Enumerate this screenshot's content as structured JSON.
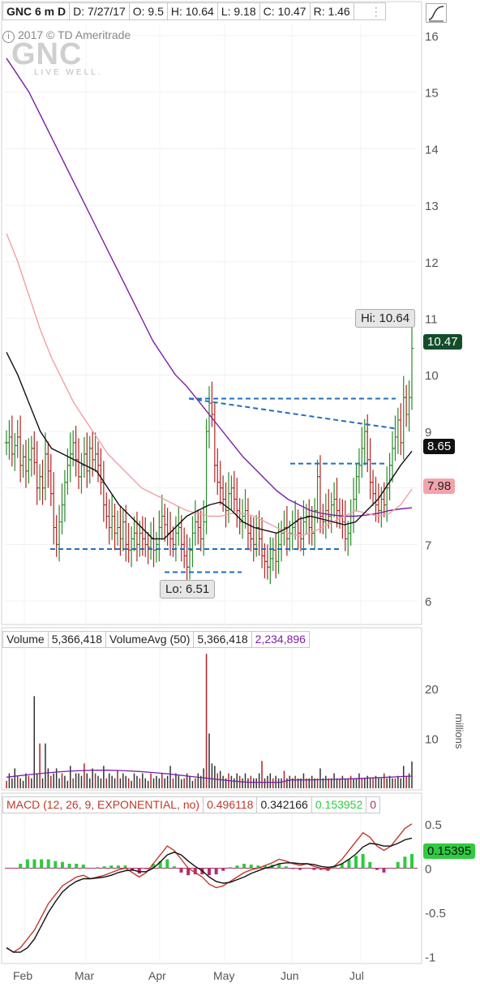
{
  "header": {
    "symbol": "GNC 6 m D",
    "date": "D: 7/27/17",
    "open": "O: 9.5",
    "high": "H: 10.64",
    "low": "L: 9.18",
    "close": "C: 10.47",
    "range": "R: 1.46"
  },
  "watermark": {
    "text": "2017 © TD Ameritrade",
    "logo": "GNC",
    "tagline": "LIVE WELL."
  },
  "price_labels": {
    "last": "10.47",
    "ma_short": "8.65",
    "ma_mid": "7.98",
    "hi": "Hi: 10.64",
    "lo": "Lo: 6.51"
  },
  "volume_header": {
    "name": "Volume",
    "value": "5,366,418",
    "avg_name": "VolumeAvg (50)",
    "avg_value": "5,366,418",
    "avg_other": "2,234,896"
  },
  "macd_header": {
    "name": "MACD (12, 26, 9, EXPONENTIAL, no)",
    "value": "0.496118",
    "avg": "0.342166",
    "diff": "0.153952",
    "zero": "0"
  },
  "macd_label": "0.15395",
  "volume_unit": "millions",
  "colors": {
    "up": "#2a8a2a",
    "down": "#b22222",
    "bar": "#333333",
    "ma_long": "#7b1fa2",
    "ma_mid": "#f0a0a8",
    "ma_short": "#111111",
    "pattern": "#1f6fbf",
    "macd_hist": "#2ecc40",
    "macd_neg": "#b0306a",
    "macd_line": "#c0392b",
    "signal_line": "#111111",
    "last_label_bg": "#134d2a",
    "ma_mid_label_bg": "#f5a3ab"
  },
  "chart_data": [
    {
      "type": "ohlc",
      "title": "GNC 6 m D",
      "x": [
        "Feb",
        "Mar",
        "Apr",
        "May",
        "Jun",
        "Jul"
      ],
      "ylim": [
        5.7,
        16.2
      ],
      "yticks": [
        6,
        7,
        8,
        9,
        10,
        11,
        12,
        13,
        14,
        15,
        16
      ],
      "hi": 10.64,
      "lo": 6.51,
      "close_series": [
        8.8,
        8.9,
        8.6,
        8.75,
        8.9,
        8.4,
        8.55,
        8.3,
        8.5,
        8.7,
        8.45,
        8.0,
        8.2,
        8.0,
        8.6,
        8.3,
        7.9,
        7.3,
        7.0,
        7.4,
        7.7,
        8.1,
        8.4,
        8.6,
        8.8,
        8.5,
        8.2,
        8.4,
        8.6,
        8.3,
        8.7,
        8.5,
        8.6,
        8.4,
        8.1,
        7.7,
        7.5,
        7.3,
        7.5,
        7.2,
        7.3,
        7.1,
        7.4,
        7.0,
        6.9,
        7.1,
        7.2,
        7.0,
        7.2,
        7.1,
        7.0,
        6.95,
        7.1,
        6.9,
        7.0,
        7.3,
        7.5,
        7.35,
        7.2,
        7.1,
        7.0,
        7.2,
        7.3,
        7.0,
        6.8,
        6.6,
        6.9,
        7.2,
        7.4,
        7.3,
        7.1,
        7.4,
        9.0,
        9.5,
        9.3,
        8.4,
        8.1,
        8.0,
        7.8,
        7.6,
        7.9,
        8.0,
        7.8,
        7.6,
        7.4,
        7.5,
        7.6,
        7.2,
        7.1,
        7.0,
        7.3,
        7.1,
        6.8,
        6.7,
        6.6,
        6.75,
        6.9,
        6.7,
        7.0,
        7.2,
        7.3,
        7.1,
        7.2,
        7.3,
        7.4,
        7.2,
        7.1,
        7.4,
        7.5,
        7.3,
        7.2,
        7.6,
        8.2,
        7.5,
        7.4,
        7.6,
        7.5,
        7.7,
        7.8,
        7.6,
        7.5,
        7.4,
        7.1,
        7.2,
        7.5,
        7.8,
        8.2,
        8.4,
        8.7,
        9.0,
        8.5,
        8.1,
        7.9,
        7.7,
        7.6,
        7.8,
        7.7,
        8.0,
        8.4,
        8.7,
        8.9,
        9.2,
        8.8,
        9.6,
        9.3,
        9.6,
        10.47
      ],
      "ma_long": [
        15.6,
        15.3,
        15.0,
        14.6,
        14.2,
        13.8,
        13.4,
        13.0,
        12.6,
        12.2,
        11.8,
        11.4,
        11.0,
        10.6,
        10.3,
        10.0,
        9.8,
        9.55,
        9.3,
        9.05,
        8.8,
        8.55,
        8.35,
        8.15,
        7.95,
        7.8,
        7.7,
        7.6,
        7.55,
        7.52,
        7.5,
        7.5,
        7.52,
        7.55,
        7.6,
        7.63,
        7.65
      ],
      "ma_mid": [
        12.5,
        12.0,
        11.4,
        10.8,
        10.3,
        9.9,
        9.5,
        9.2,
        8.9,
        8.6,
        8.4,
        8.2,
        8.0,
        7.9,
        7.8,
        7.7,
        7.6,
        7.55,
        7.5,
        7.5,
        7.55,
        7.55,
        7.5,
        7.4,
        7.3,
        7.2,
        7.15,
        7.2,
        7.3,
        7.4,
        7.5,
        7.6,
        7.55,
        7.5,
        7.55,
        7.7,
        7.98
      ],
      "ma_short": [
        10.4,
        10.0,
        9.5,
        9.0,
        8.7,
        8.6,
        8.5,
        8.4,
        8.3,
        8.0,
        7.7,
        7.5,
        7.3,
        7.1,
        7.1,
        7.3,
        7.5,
        7.6,
        7.7,
        7.75,
        7.6,
        7.4,
        7.3,
        7.25,
        7.2,
        7.3,
        7.45,
        7.5,
        7.45,
        7.4,
        7.35,
        7.4,
        7.6,
        7.8,
        8.1,
        8.4,
        8.65
      ]
    },
    {
      "type": "bar",
      "title": "Volume",
      "ylabel": "millions",
      "ylim": [
        0,
        28
      ],
      "yticks": [
        10,
        20
      ],
      "volume_avg": 2.234896,
      "values": [
        1.5,
        3,
        2,
        4,
        2.5,
        2,
        1.5,
        3,
        2.5,
        2,
        18.5,
        3,
        9,
        2,
        9,
        4,
        2.5,
        3,
        4,
        2,
        3,
        2.5,
        1.5,
        4.5,
        2,
        3,
        3,
        2.5,
        5,
        3,
        2,
        4,
        3,
        2.5,
        2,
        4.5,
        2,
        3,
        2.5,
        2,
        3.5,
        2,
        3,
        2.5,
        2,
        1.5,
        3,
        2.5,
        2,
        3,
        2,
        1.5,
        3,
        2,
        2.5,
        2,
        3,
        2,
        2.5,
        4.5,
        2,
        3,
        2.5,
        1.8,
        2,
        3,
        2.5,
        1.5,
        2,
        3,
        2.5,
        4,
        27,
        11,
        5,
        4.5,
        3,
        3.5,
        2.5,
        2,
        3,
        2.5,
        2,
        3,
        2.5,
        2,
        3,
        2,
        2.5,
        2,
        2,
        3,
        5.5,
        2,
        2.5,
        3,
        2,
        2.5,
        2,
        2,
        3.5,
        2,
        2.5,
        2,
        2.5,
        2,
        2,
        3,
        2,
        2,
        2.5,
        2,
        2,
        4,
        2,
        2.5,
        2,
        2,
        3,
        2,
        2,
        2.5,
        1.8,
        2,
        2.5,
        2,
        2,
        3,
        2,
        2,
        2.5,
        2,
        2,
        2.5,
        2,
        2,
        3,
        2,
        2.5,
        2,
        2,
        2.5,
        2,
        4.5,
        2.5,
        3,
        5.37
      ]
    },
    {
      "type": "line",
      "title": "MACD (12, 26, 9, EXPONENTIAL, no)",
      "ylim": [
        -1.05,
        0.6
      ],
      "yticks": [
        0.5,
        0,
        -0.5,
        -1
      ],
      "x": [
        "Feb",
        "Mar",
        "Apr",
        "May",
        "Jun",
        "Jul"
      ],
      "macd": [
        -0.9,
        -0.95,
        -0.9,
        -0.8,
        -0.7,
        -0.55,
        -0.4,
        -0.3,
        -0.2,
        -0.15,
        -0.1,
        -0.08,
        -0.12,
        -0.1,
        -0.08,
        -0.05,
        -0.02,
        0.0,
        -0.05,
        -0.1,
        -0.05,
        0.05,
        0.15,
        0.25,
        0.2,
        0.1,
        0.0,
        -0.05,
        -0.1,
        -0.18,
        -0.22,
        -0.2,
        -0.15,
        -0.1,
        -0.05,
        -0.02,
        0.0,
        0.03,
        0.06,
        0.1,
        0.08,
        0.05,
        0.03,
        0.05,
        0.02,
        0.0,
        -0.02,
        0.03,
        0.1,
        0.2,
        0.3,
        0.4,
        0.35,
        0.25,
        0.2,
        0.25,
        0.35,
        0.45,
        0.5
      ],
      "signal": [
        -0.9,
        -0.95,
        -0.95,
        -0.9,
        -0.8,
        -0.65,
        -0.5,
        -0.38,
        -0.27,
        -0.2,
        -0.15,
        -0.12,
        -0.12,
        -0.11,
        -0.1,
        -0.08,
        -0.05,
        -0.03,
        -0.02,
        -0.04,
        -0.04,
        0.0,
        0.07,
        0.15,
        0.18,
        0.15,
        0.08,
        0.02,
        -0.03,
        -0.1,
        -0.15,
        -0.17,
        -0.16,
        -0.13,
        -0.1,
        -0.06,
        -0.03,
        0.0,
        0.02,
        0.05,
        0.06,
        0.06,
        0.05,
        0.05,
        0.04,
        0.02,
        0.01,
        0.02,
        0.05,
        0.1,
        0.16,
        0.24,
        0.28,
        0.27,
        0.25,
        0.25,
        0.28,
        0.32,
        0.34
      ],
      "hist_last": 0.15395
    }
  ]
}
